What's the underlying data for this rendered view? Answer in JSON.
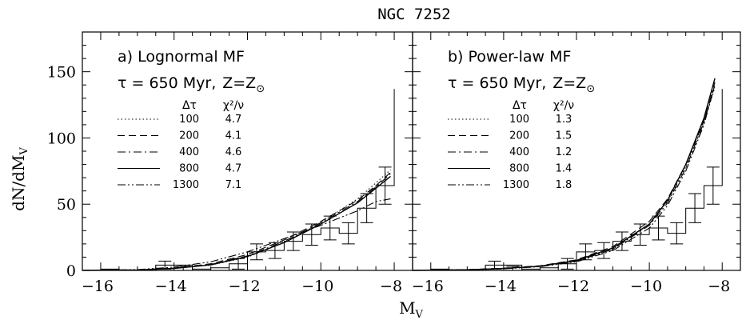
{
  "title": "NGC 7252",
  "y_axis_label": "dN/dM",
  "y_axis_label_sub": "V",
  "x_axis_label": "M",
  "x_axis_label_sub": "V",
  "panels": [
    {
      "heading": "a) Lognormal MF",
      "subheading_tau": "τ = 650 Myr,",
      "subheading_z": "Z=Z",
      "legend_col1": "Δτ",
      "legend_col2": "χ²/ν",
      "legend_rows": [
        {
          "dt": "100",
          "chi": "4.7",
          "style": "dotted"
        },
        {
          "dt": "200",
          "chi": "4.1",
          "style": "dashed"
        },
        {
          "dt": "400",
          "chi": "4.6",
          "style": "dashdot"
        },
        {
          "dt": "800",
          "chi": "4.7",
          "style": "solid"
        },
        {
          "dt": "1300",
          "chi": "7.1",
          "style": "dashdotdot"
        }
      ]
    },
    {
      "heading": "b) Power-law MF",
      "subheading_tau": "τ = 650 Myr,",
      "subheading_z": "Z=Z",
      "legend_col1": "Δτ",
      "legend_col2": "χ²/ν",
      "legend_rows": [
        {
          "dt": "100",
          "chi": "1.3",
          "style": "dotted"
        },
        {
          "dt": "200",
          "chi": "1.5",
          "style": "dashed"
        },
        {
          "dt": "400",
          "chi": "1.2",
          "style": "dashdot"
        },
        {
          "dt": "800",
          "chi": "1.4",
          "style": "solid"
        },
        {
          "dt": "1300",
          "chi": "1.8",
          "style": "dashdotdot"
        }
      ]
    }
  ],
  "chart_data": [
    {
      "type": "line",
      "panel": "a",
      "xlim": [
        -16.5,
        -7.5
      ],
      "ylim": [
        0,
        180
      ],
      "x_ticks": [
        "-16",
        "-14",
        "-12",
        "-10",
        "-8"
      ],
      "y_ticks": [
        "0",
        "50",
        "100",
        "150"
      ],
      "histogram": {
        "bin_edges": [
          -16.5,
          -16.0,
          -15.5,
          -15.0,
          -14.5,
          -14.0,
          -13.5,
          -13.0,
          -12.5,
          -12.0,
          -11.5,
          -11.0,
          -10.5,
          -10.0,
          -9.5,
          -9.0,
          -8.5,
          -8.0
        ],
        "counts": [
          0,
          1,
          0,
          0,
          4,
          4,
          1,
          2,
          5,
          14,
          15,
          22,
          27,
          32,
          28,
          47,
          64,
          137
        ],
        "error_centers": [
          -14.25,
          -13.75,
          -12.25,
          -11.75,
          -11.25,
          -10.75,
          -10.25,
          -9.75,
          -9.25,
          -8.75,
          -8.25
        ],
        "error_values": [
          4,
          1,
          5,
          14,
          15,
          22,
          27,
          32,
          28,
          47,
          64
        ],
        "error_sizes": [
          3,
          2,
          4,
          6,
          6,
          7,
          8,
          9,
          8,
          11,
          14
        ]
      },
      "series": [
        {
          "name": "100",
          "style": "dotted",
          "x": [
            -16.5,
            -15,
            -14,
            -13,
            -12,
            -11,
            -10,
            -9,
            -8.5,
            -8.1
          ],
          "y": [
            0,
            0.3,
            1.5,
            4,
            10,
            21,
            36,
            54,
            66,
            76
          ]
        },
        {
          "name": "200",
          "style": "dashed",
          "x": [
            -16.5,
            -15,
            -14,
            -13,
            -12,
            -11,
            -10,
            -9,
            -8.5,
            -8.1
          ],
          "y": [
            0,
            0.4,
            1.8,
            5,
            12,
            23,
            37,
            53,
            64,
            74
          ]
        },
        {
          "name": "400",
          "style": "dashdot",
          "x": [
            -16.5,
            -15,
            -14,
            -13,
            -12,
            -11,
            -10,
            -9,
            -8.5,
            -8.1
          ],
          "y": [
            0,
            0.3,
            1.6,
            4.5,
            11,
            22,
            36,
            52,
            63,
            73
          ]
        },
        {
          "name": "800",
          "style": "solid",
          "x": [
            -16.5,
            -15,
            -14,
            -13,
            -12,
            -11,
            -10,
            -9,
            -8.5,
            -8.1
          ],
          "y": [
            0,
            0.3,
            1.5,
            4.2,
            10.5,
            21,
            35,
            51,
            62,
            71
          ]
        },
        {
          "name": "1300",
          "style": "dashdotdot",
          "x": [
            -16.5,
            -15,
            -14,
            -13,
            -12,
            -11,
            -10,
            -9,
            -8.5,
            -8.1
          ],
          "y": [
            0,
            0.6,
            2.5,
            6.5,
            14,
            24,
            34,
            45,
            52,
            54
          ]
        }
      ]
    },
    {
      "type": "line",
      "panel": "b",
      "xlim": [
        -16.5,
        -7.5
      ],
      "ylim": [
        0,
        180
      ],
      "x_ticks": [
        "-16",
        "-14",
        "-12",
        "-10",
        "-8"
      ],
      "y_ticks": [
        "0",
        "50",
        "100",
        "150"
      ],
      "histogram": {
        "bin_edges": [
          -16.5,
          -16.0,
          -15.5,
          -15.0,
          -14.5,
          -14.0,
          -13.5,
          -13.0,
          -12.5,
          -12.0,
          -11.5,
          -11.0,
          -10.5,
          -10.0,
          -9.5,
          -9.0,
          -8.5,
          -8.0
        ],
        "counts": [
          0,
          1,
          0,
          0,
          4,
          4,
          1,
          2,
          5,
          14,
          15,
          22,
          27,
          32,
          28,
          47,
          64,
          137
        ],
        "error_centers": [
          -14.25,
          -13.75,
          -12.25,
          -11.75,
          -11.25,
          -10.75,
          -10.25,
          -9.75,
          -9.25,
          -8.75,
          -8.25
        ],
        "error_values": [
          4,
          1,
          5,
          14,
          15,
          22,
          27,
          32,
          28,
          47,
          64
        ],
        "error_sizes": [
          3,
          2,
          4,
          6,
          6,
          7,
          8,
          9,
          8,
          11,
          14
        ]
      },
      "series": [
        {
          "name": "100",
          "style": "dotted",
          "x": [
            -16.5,
            -15,
            -14,
            -13,
            -12,
            -11,
            -10,
            -9.5,
            -9,
            -8.5,
            -8.2
          ],
          "y": [
            0,
            0.5,
            1.5,
            3,
            7,
            16,
            35,
            52,
            78,
            112,
            138
          ]
        },
        {
          "name": "200",
          "style": "dashed",
          "x": [
            -16.5,
            -15,
            -14,
            -13,
            -12,
            -11,
            -10,
            -9.5,
            -9,
            -8.5,
            -8.2
          ],
          "y": [
            0,
            0.6,
            1.7,
            3.5,
            8,
            18,
            37,
            54,
            80,
            113,
            140
          ]
        },
        {
          "name": "400",
          "style": "dashdot",
          "x": [
            -16.5,
            -15,
            -14,
            -13,
            -12,
            -11,
            -10,
            -9.5,
            -9,
            -8.5,
            -8.2
          ],
          "y": [
            0,
            0.5,
            1.4,
            3,
            7,
            16,
            34,
            51,
            77,
            112,
            142
          ]
        },
        {
          "name": "800",
          "style": "solid",
          "x": [
            -16.5,
            -15,
            -14,
            -13,
            -12,
            -11,
            -10,
            -9.5,
            -9,
            -8.5,
            -8.2
          ],
          "y": [
            0,
            0.5,
            1.5,
            3.2,
            7.5,
            17,
            35,
            53,
            80,
            115,
            145
          ]
        },
        {
          "name": "1300",
          "style": "dashdotdot",
          "x": [
            -16.5,
            -15,
            -14,
            -13,
            -12,
            -11,
            -10,
            -9.5,
            -9,
            -8.5,
            -8.2
          ],
          "y": [
            0,
            0.4,
            1.2,
            2.8,
            6.5,
            15,
            32,
            49,
            75,
            110,
            140
          ]
        }
      ]
    }
  ]
}
